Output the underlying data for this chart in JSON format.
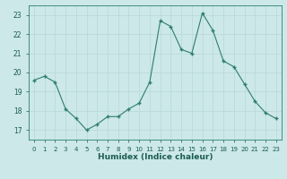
{
  "title": "",
  "xlabel": "Humidex (Indice chaleur)",
  "x": [
    0,
    1,
    2,
    3,
    4,
    5,
    6,
    7,
    8,
    9,
    10,
    11,
    12,
    13,
    14,
    15,
    16,
    17,
    18,
    19,
    20,
    21,
    22,
    23
  ],
  "y": [
    19.6,
    19.8,
    19.5,
    18.1,
    17.6,
    17.0,
    17.3,
    17.7,
    17.7,
    18.1,
    18.4,
    19.5,
    22.7,
    22.4,
    21.2,
    21.0,
    23.1,
    22.2,
    20.6,
    20.3,
    19.4,
    18.5,
    17.9,
    17.6
  ],
  "line_color": "#2e7d6e",
  "marker_color": "#2e7d6e",
  "bg_color": "#cce8e8",
  "grid_color": "#b8d8d8",
  "axis_color": "#2e7d6e",
  "tick_color": "#1a5c52",
  "ylim": [
    16.5,
    23.5
  ],
  "yticks": [
    17,
    18,
    19,
    20,
    21,
    22,
    23
  ],
  "xlim": [
    -0.5,
    23.5
  ],
  "xticks": [
    0,
    1,
    2,
    3,
    4,
    5,
    6,
    7,
    8,
    9,
    10,
    11,
    12,
    13,
    14,
    15,
    16,
    17,
    18,
    19,
    20,
    21,
    22,
    23
  ]
}
